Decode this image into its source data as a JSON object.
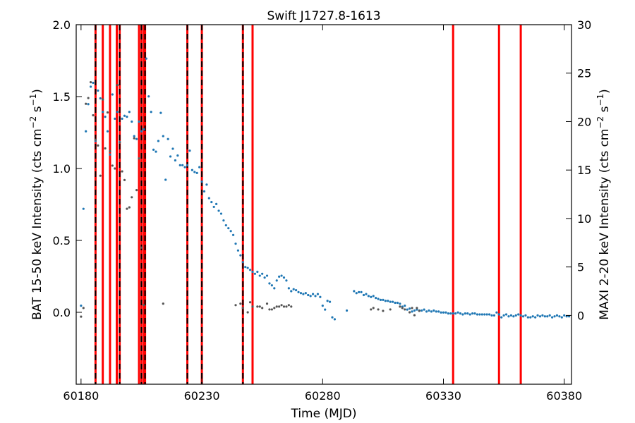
{
  "chart_data": {
    "type": "scatter",
    "title": "Swift J1727.8-1613",
    "xlabel": "Time (MJD)",
    "ylabel_left": "BAT 15-50 keV Intensity (cts cm$^{-2}$ s$^{-1}$)",
    "ylabel_left_text": {
      "main": "BAT 15-50 keV Intensity (cts cm",
      "sup1": "−2",
      "mid": " s",
      "sup2": "−1",
      "end": ")"
    },
    "ylabel_right_text": {
      "main": "MAXI 2-20 keV Intensity (cts cm",
      "sup1": "−2",
      "mid": " s",
      "sup2": "−1",
      "end": ")"
    },
    "xlim": [
      60178,
      60383
    ],
    "ylim_left": [
      -0.5,
      2.0
    ],
    "ylim_right": [
      -7.1,
      30
    ],
    "x_ticks": [
      60180,
      60230,
      60280,
      60330,
      60380
    ],
    "x_tick_labels": [
      "60180",
      "60230",
      "60280",
      "60330",
      "60380"
    ],
    "y_left_ticks": [
      0.0,
      0.5,
      1.0,
      1.5,
      2.0
    ],
    "y_left_tick_labels": [
      "0.0",
      "0.5",
      "1.0",
      "1.5",
      "2.0"
    ],
    "y_right_ticks": [
      0,
      5,
      10,
      15,
      20,
      25,
      30
    ],
    "y_right_tick_labels": [
      "0",
      "5",
      "10",
      "15",
      "20",
      "25",
      "30"
    ],
    "grid": false,
    "colors": {
      "maxi": "#1f77b4",
      "bat": "#555555",
      "red_line": "#ff0000",
      "black_dash": "#000000"
    },
    "vertical_lines_red": [
      60186,
      60189,
      60192,
      60194.8,
      60196,
      60204,
      60205,
      60206,
      60206.5,
      60224,
      60230,
      60247,
      60251,
      60334,
      60353,
      60362
    ],
    "vertical_lines_dashed": [
      60186,
      60196,
      60205,
      60206.5,
      60224,
      60230,
      60247
    ],
    "series": [
      {
        "axis": "right",
        "points": [
          [
            60180,
            1.0
          ],
          [
            60181,
            11.0
          ],
          [
            60182,
            19.0
          ],
          [
            60183,
            21.8
          ],
          [
            60184,
            23.6
          ],
          [
            60185,
            24.0
          ],
          [
            60186,
            18.0
          ],
          [
            60187,
            23.2
          ],
          [
            60188,
            22.4
          ],
          [
            60189,
            21.0
          ],
          [
            60190,
            20.5
          ],
          [
            60191,
            19.0
          ],
          [
            60192,
            16.6
          ],
          [
            60193,
            22.8
          ],
          [
            60194,
            20.3
          ],
          [
            60195,
            21.0
          ],
          [
            60196,
            17.9
          ],
          [
            60197,
            20.3
          ],
          [
            60198,
            20.6
          ],
          [
            60199,
            20.5
          ],
          [
            60200,
            21.0
          ],
          [
            60201,
            20.0
          ],
          [
            60202,
            18.5
          ],
          [
            60203,
            18.2
          ],
          [
            60204,
            20.0
          ],
          [
            60205,
            19.0
          ],
          [
            60206,
            19.2
          ],
          [
            60207,
            26.5
          ],
          [
            60208,
            22.6
          ],
          [
            60209,
            21.0
          ],
          [
            60210,
            17.1
          ],
          [
            60211,
            16.9
          ],
          [
            60212,
            18.0
          ],
          [
            60213,
            20.9
          ],
          [
            60214,
            18.5
          ],
          [
            60215,
            14.0
          ],
          [
            60216,
            18.2
          ],
          [
            60217,
            16.4
          ],
          [
            60218,
            17.2
          ],
          [
            60219,
            16.0
          ],
          [
            60220,
            16.5
          ],
          [
            60221,
            15.5
          ],
          [
            60222,
            15.5
          ],
          [
            60223,
            15.3
          ],
          [
            60224,
            15.5
          ],
          [
            60225,
            17.0
          ],
          [
            60226,
            15.0
          ],
          [
            60227,
            14.8
          ],
          [
            60228,
            14.7
          ],
          [
            60229,
            15.3
          ],
          [
            60230,
            13.8
          ],
          [
            60231,
            12.8
          ],
          [
            60232,
            13.5
          ],
          [
            60233,
            12.1
          ],
          [
            60234,
            11.7
          ],
          [
            60235,
            11.2
          ],
          [
            60236,
            11.5
          ],
          [
            60237,
            10.8
          ],
          [
            60238,
            10.5
          ],
          [
            60239,
            9.8
          ],
          [
            60240,
            9.3
          ],
          [
            60241,
            9.0
          ],
          [
            60242,
            8.7
          ],
          [
            60243,
            8.3
          ],
          [
            60244,
            7.4
          ],
          [
            60245,
            6.7
          ],
          [
            60246,
            6.2
          ],
          [
            60247,
            5.5
          ],
          [
            60248,
            5.0
          ],
          [
            60249,
            4.9
          ],
          [
            60250,
            4.7
          ],
          [
            60251,
            4.5
          ],
          [
            60252,
            4.3
          ],
          [
            60253,
            4.5
          ],
          [
            60254,
            4.1
          ],
          [
            60255,
            4.3
          ],
          [
            60256,
            3.9
          ],
          [
            60257,
            4.1
          ],
          [
            60258,
            3.3
          ],
          [
            60259,
            3.1
          ],
          [
            60260,
            2.8
          ],
          [
            60261,
            3.6
          ],
          [
            60262,
            4.0
          ],
          [
            60263,
            4.1
          ],
          [
            60264,
            3.9
          ],
          [
            60265,
            3.6
          ],
          [
            60266,
            2.8
          ],
          [
            60267,
            2.5
          ],
          [
            60268,
            2.7
          ],
          [
            60269,
            2.6
          ],
          [
            60270,
            2.4
          ],
          [
            60271,
            2.3
          ],
          [
            60272,
            2.2
          ],
          [
            60273,
            2.3
          ],
          [
            60274,
            2.1
          ],
          [
            60275,
            2.0
          ],
          [
            60276,
            2.2
          ],
          [
            60277,
            2.0
          ],
          [
            60278,
            2.2
          ],
          [
            60279,
            1.9
          ],
          [
            60280,
            1.0
          ],
          [
            60281,
            0.6
          ],
          [
            60282,
            1.5
          ],
          [
            60283,
            1.4
          ],
          [
            60284,
            -0.2
          ],
          [
            60285,
            -0.4
          ],
          [
            60290,
            0.5
          ],
          [
            60293,
            2.5
          ],
          [
            60294,
            2.3
          ],
          [
            60295,
            2.4
          ],
          [
            60296,
            2.4
          ],
          [
            60297,
            2.1
          ],
          [
            60298,
            2.2
          ],
          [
            60299,
            2.0
          ],
          [
            60300,
            1.9
          ],
          [
            60301,
            2.0
          ],
          [
            60302,
            1.8
          ],
          [
            60303,
            1.7
          ],
          [
            60304,
            1.6
          ],
          [
            60305,
            1.6
          ],
          [
            60306,
            1.5
          ],
          [
            60307,
            1.5
          ],
          [
            60308,
            1.4
          ],
          [
            60309,
            1.4
          ],
          [
            60310,
            1.3
          ],
          [
            60311,
            1.3
          ],
          [
            60312,
            1.2
          ],
          [
            60313,
            0.9
          ],
          [
            60314,
            1.0
          ],
          [
            60315,
            0.6
          ],
          [
            60316,
            0.7
          ],
          [
            60317,
            0.4
          ],
          [
            60318,
            0.5
          ],
          [
            60319,
            0.6
          ],
          [
            60320,
            0.5
          ],
          [
            60321,
            0.5
          ],
          [
            60322,
            0.6
          ],
          [
            60323,
            0.4
          ],
          [
            60324,
            0.5
          ],
          [
            60325,
            0.4
          ],
          [
            60326,
            0.5
          ],
          [
            60327,
            0.4
          ],
          [
            60328,
            0.4
          ],
          [
            60329,
            0.3
          ],
          [
            60330,
            0.3
          ],
          [
            60331,
            0.3
          ],
          [
            60332,
            0.2
          ],
          [
            60333,
            0.2
          ],
          [
            60334,
            0.2
          ],
          [
            60335,
            0.2
          ],
          [
            60336,
            0.3
          ],
          [
            60337,
            0.2
          ],
          [
            60338,
            0.1
          ],
          [
            60339,
            0.2
          ],
          [
            60340,
            0.2
          ],
          [
            60341,
            0.1
          ],
          [
            60342,
            0.2
          ],
          [
            60343,
            0.2
          ],
          [
            60344,
            0.1
          ],
          [
            60345,
            0.1
          ],
          [
            60346,
            0.1
          ],
          [
            60347,
            0.1
          ],
          [
            60348,
            0.1
          ],
          [
            60349,
            0.1
          ],
          [
            60350,
            0.0
          ],
          [
            60351,
            0.0
          ],
          [
            60352,
            0.3
          ],
          [
            60353,
            0.1
          ],
          [
            60354,
            -0.2
          ],
          [
            60355,
            0.0
          ],
          [
            60356,
            0.1
          ],
          [
            60357,
            -0.1
          ],
          [
            60358,
            0.0
          ],
          [
            60359,
            -0.1
          ],
          [
            60360,
            0.0
          ],
          [
            60361,
            0.1
          ],
          [
            60362,
            0.0
          ],
          [
            60363,
            -0.1
          ],
          [
            60364,
            0.0
          ],
          [
            60365,
            -0.2
          ],
          [
            60366,
            -0.2
          ],
          [
            60367,
            -0.1
          ],
          [
            60368,
            -0.2
          ],
          [
            60369,
            0.0
          ],
          [
            60370,
            -0.1
          ],
          [
            60371,
            0.0
          ],
          [
            60372,
            -0.1
          ],
          [
            60373,
            -0.1
          ],
          [
            60374,
            0.0
          ],
          [
            60375,
            -0.2
          ],
          [
            60376,
            -0.1
          ],
          [
            60377,
            0.0
          ],
          [
            60378,
            -0.1
          ],
          [
            60379,
            -0.2
          ],
          [
            60380,
            0.0
          ],
          [
            60381,
            -0.1
          ],
          [
            60382,
            -0.1
          ]
        ]
      },
      {
        "axis": "left",
        "points": [
          [
            60180,
            -0.03
          ],
          [
            60181,
            0.03
          ],
          [
            60182,
            1.45
          ],
          [
            60183,
            1.49
          ],
          [
            60184,
            1.6
          ],
          [
            60185,
            1.37
          ],
          [
            60186,
            1.2
          ],
          [
            60187,
            1.16
          ],
          [
            60188,
            0.95
          ],
          [
            60189,
            1.48
          ],
          [
            60190,
            1.14
          ],
          [
            60191,
            1.39
          ],
          [
            60192,
            1.12
          ],
          [
            60193,
            1.02
          ],
          [
            60194,
            1.0
          ],
          [
            60195,
            1.58
          ],
          [
            60196,
            1.18
          ],
          [
            60197,
            0.98
          ],
          [
            60198,
            0.92
          ],
          [
            60199,
            0.72
          ],
          [
            60200,
            0.73
          ],
          [
            60201,
            0.8
          ],
          [
            60202,
            1.21
          ],
          [
            60203,
            0.85
          ],
          [
            60204,
            1.07
          ],
          [
            60205,
            0.45
          ],
          [
            60206,
            0.05
          ],
          [
            60214,
            0.06
          ],
          [
            60244,
            0.05
          ],
          [
            60246,
            0.06
          ],
          [
            60247,
            0.03
          ],
          [
            60249,
            0.0
          ],
          [
            60250,
            0.07
          ],
          [
            60251,
            0.04
          ],
          [
            60253,
            0.04
          ],
          [
            60254,
            0.04
          ],
          [
            60255,
            0.03
          ],
          [
            60257,
            0.06
          ],
          [
            60258,
            0.02
          ],
          [
            60259,
            0.02
          ],
          [
            60260,
            0.03
          ],
          [
            60261,
            0.04
          ],
          [
            60262,
            0.04
          ],
          [
            60263,
            0.05
          ],
          [
            60264,
            0.04
          ],
          [
            60265,
            0.04
          ],
          [
            60266,
            0.05
          ],
          [
            60267,
            0.04
          ],
          [
            60300,
            0.02
          ],
          [
            60301,
            0.03
          ],
          [
            60303,
            0.02
          ],
          [
            60305,
            0.01
          ],
          [
            60308,
            0.02
          ],
          [
            60312,
            0.04
          ],
          [
            60313,
            0.03
          ],
          [
            60314,
            0.02
          ],
          [
            60316,
            0.0
          ],
          [
            60317,
            0.03
          ],
          [
            60318,
            -0.02
          ],
          [
            60319,
            0.03
          ],
          [
            60320,
            0.01
          ]
        ]
      }
    ]
  }
}
